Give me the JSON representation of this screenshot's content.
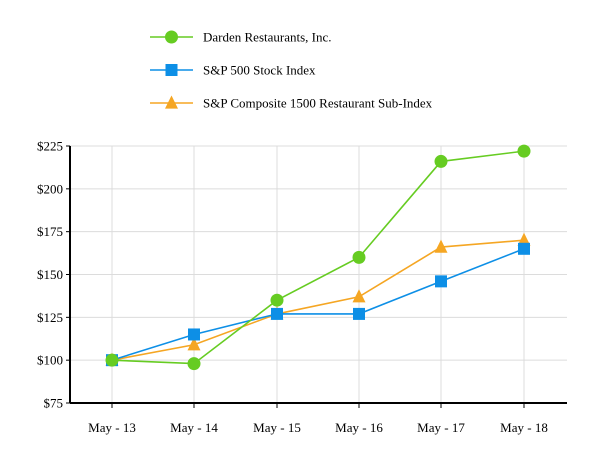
{
  "chart_data": {
    "type": "line",
    "categories": [
      "May - 13",
      "May - 14",
      "May - 15",
      "May - 16",
      "May - 17",
      "May - 18"
    ],
    "series": [
      {
        "name": "Darden Restaurants, Inc.",
        "values": [
          100,
          98,
          135,
          160,
          216,
          222
        ],
        "color": "#66cc22",
        "marker": "circle"
      },
      {
        "name": "S&P 500 Stock Index",
        "values": [
          100,
          115,
          127,
          127,
          146,
          165
        ],
        "color": "#0d8fe6",
        "marker": "square"
      },
      {
        "name": "S&P Composite 1500 Restaurant Sub-Index",
        "values": [
          100,
          109,
          127,
          137,
          166,
          170
        ],
        "color": "#f5a623",
        "marker": "triangle"
      }
    ],
    "ylim": [
      75,
      225
    ],
    "yticks": [
      75,
      100,
      125,
      150,
      175,
      200,
      225
    ],
    "ytick_labels": [
      "$75",
      "$100",
      "$125",
      "$150",
      "$175",
      "$200",
      "$225"
    ],
    "grid": true,
    "legend_position": "top"
  }
}
